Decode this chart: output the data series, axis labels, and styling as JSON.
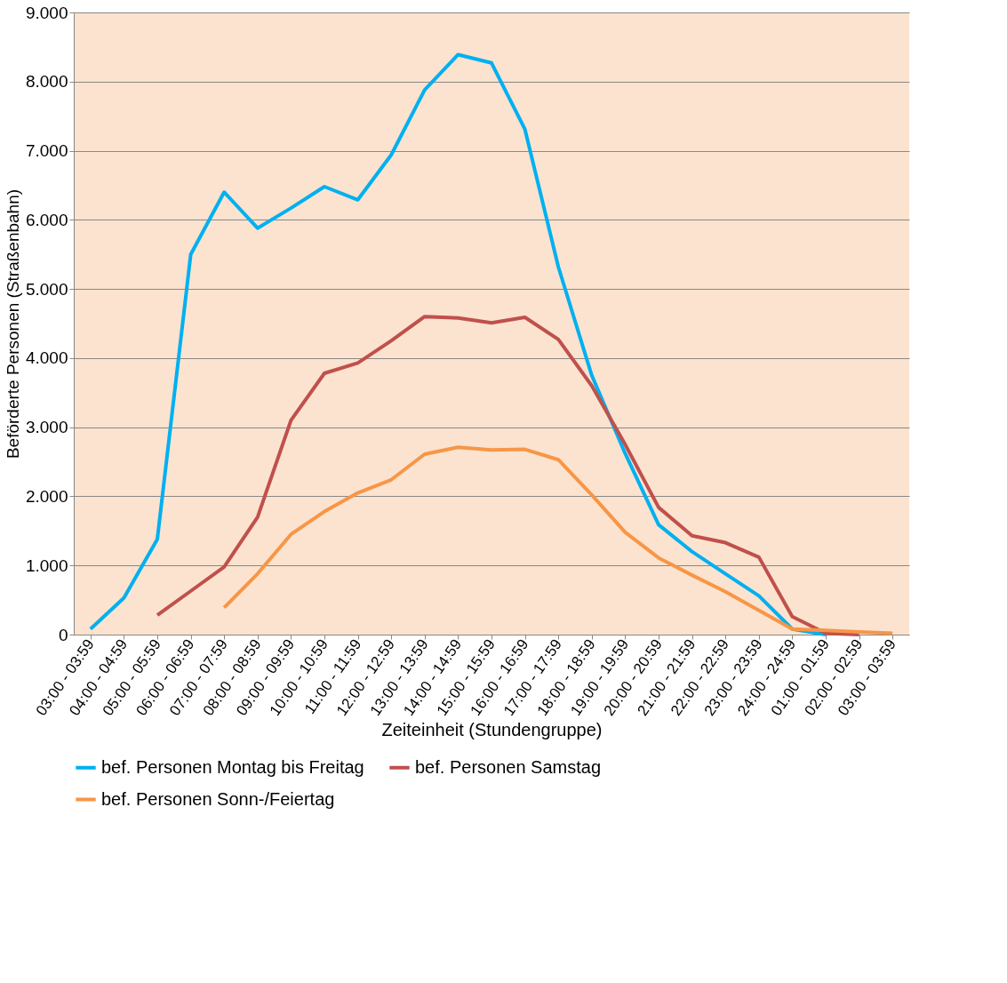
{
  "chart_data": {
    "type": "line",
    "xlabel": "Zeiteinheit (Stundengruppe)",
    "ylabel": "Beförderte Personen (Straßenbahn)",
    "categories": [
      "03:00 - 03:59",
      "04:00 - 04:59",
      "05:00 - 05:59",
      "06:00 - 06:59",
      "07:00 - 07:59",
      "08:00 - 08:59",
      "09:00 - 09:59",
      "10:00 - 10:59",
      "11:00 - 11:59",
      "12:00 - 12:59",
      "13:00 - 13:59",
      "14:00 - 14:59",
      "15:00 - 15:59",
      "16:00 - 16:59",
      "17:00 - 17:59",
      "18:00 - 18:59",
      "19:00 - 19:59",
      "20:00 - 20:59",
      "21:00 - 21:59",
      "22:00 - 22:59",
      "23:00 - 23:59",
      "24:00 - 24:59",
      "01:00 - 01:59",
      "02:00 - 02:59",
      "03:00 - 03:59"
    ],
    "series": [
      {
        "name": "bef. Personen Montag bis Freitag",
        "color": "#00b0f0",
        "values": [
          80,
          530,
          1380,
          5500,
          6400,
          5880,
          6170,
          6480,
          6290,
          6940,
          7880,
          8390,
          8270,
          7310,
          5320,
          3750,
          2620,
          1590,
          1200,
          880,
          560,
          80,
          0,
          null,
          null
        ]
      },
      {
        "name": "bef. Personen Samstag",
        "color": "#c0504d",
        "values": [
          null,
          null,
          280,
          630,
          980,
          1700,
          3100,
          3780,
          3930,
          4250,
          4600,
          4580,
          4510,
          4590,
          4270,
          3600,
          2750,
          1840,
          1430,
          1330,
          1120,
          260,
          20,
          0,
          null
        ]
      },
      {
        "name": "bef. Personen Sonn-/Feiertag",
        "color": "#f79646",
        "values": [
          null,
          null,
          null,
          null,
          390,
          880,
          1450,
          1780,
          2050,
          2240,
          2610,
          2710,
          2670,
          2680,
          2530,
          2020,
          1480,
          1110,
          860,
          620,
          350,
          80,
          60,
          40,
          20
        ]
      }
    ],
    "ylim": [
      0,
      9000
    ],
    "yticks": [
      {
        "value": 0,
        "label": "0"
      },
      {
        "value": 1000,
        "label": "1.000"
      },
      {
        "value": 2000,
        "label": "2.000"
      },
      {
        "value": 3000,
        "label": "3.000"
      },
      {
        "value": 4000,
        "label": "4.000"
      },
      {
        "value": 5000,
        "label": "5.000"
      },
      {
        "value": 6000,
        "label": "6.000"
      },
      {
        "value": 7000,
        "label": "7.000"
      },
      {
        "value": 8000,
        "label": "8.000"
      },
      {
        "value": 9000,
        "label": "9.000"
      }
    ],
    "grid": "y",
    "legend": "bottom",
    "marker": "none",
    "line_style": "solid"
  }
}
